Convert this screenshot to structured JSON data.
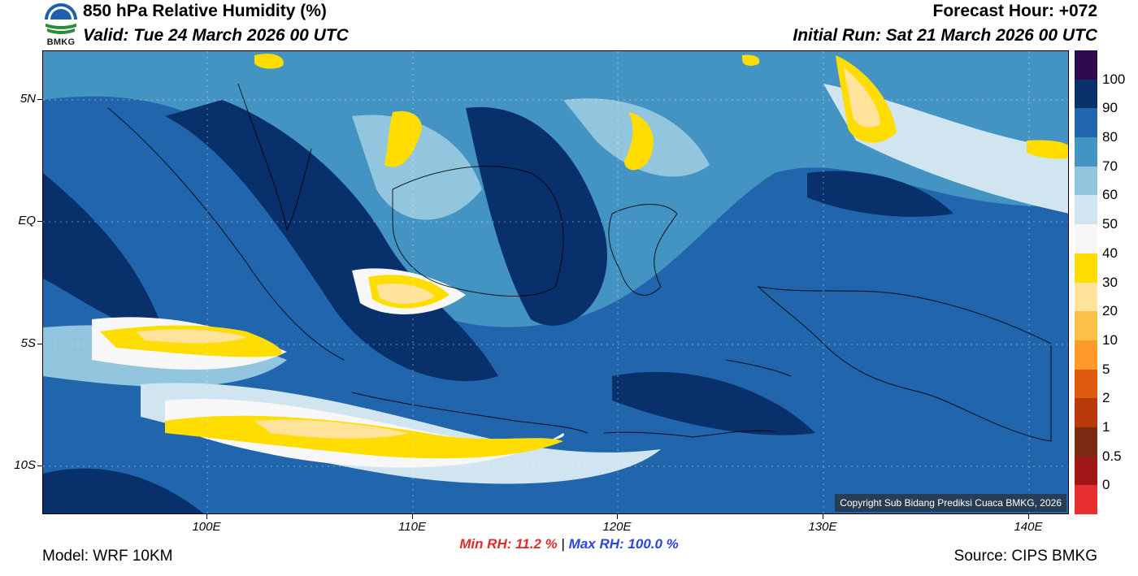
{
  "header": {
    "title": "850 hPa Relative Humidity (%)",
    "valid": "Valid: Tue 24 March 2026 00 UTC",
    "forecast_hour": "Forecast Hour: +072",
    "initial_run": "Initial Run: Sat 21 March 2026 00 UTC",
    "logo_text": "BMKG"
  },
  "map": {
    "lat_labels": [
      "5N",
      "EQ",
      "5S",
      "10S"
    ],
    "lon_labels": [
      "100E",
      "110E",
      "120E",
      "130E",
      "140E"
    ],
    "copyright": "Copyright Sub Bidang Prediksi Cuaca BMKG, 2026",
    "extent": {
      "lon_min": 92,
      "lon_max": 142,
      "lat_min": -12,
      "lat_max": 7
    }
  },
  "colorbar": {
    "labels": [
      "100",
      "90",
      "80",
      "70",
      "60",
      "50",
      "40",
      "30",
      "20",
      "10",
      "5",
      "2",
      "1",
      "0.5",
      "0"
    ],
    "colors": [
      "#2d0a4e",
      "#08306b",
      "#2166ac",
      "#4393c3",
      "#92c5de",
      "#d1e5f0",
      "#f7f7f7",
      "#ffdd00",
      "#ffe39a",
      "#ffc04a",
      "#ff9a2a",
      "#e05a10",
      "#b83a0a",
      "#7a2a10",
      "#a01515",
      "#e83030"
    ]
  },
  "stats": {
    "min": "Min RH:  11.2 %",
    "separator": "|",
    "max": "Max RH: 100.0 %"
  },
  "footer": {
    "model": "Model: WRF 10KM",
    "source": "Source: CIPS BMKG"
  }
}
